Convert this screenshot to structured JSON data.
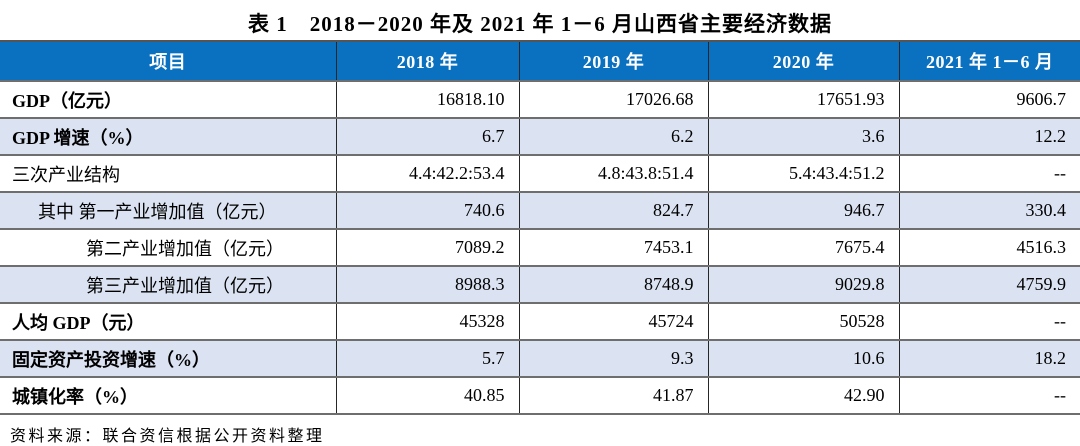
{
  "title": "表 1　2018－2020 年及 2021 年 1－6 月山西省主要经济数据",
  "table": {
    "columns": [
      "项目",
      "2018 年",
      "2019 年",
      "2020 年",
      "2021 年 1－6 月"
    ],
    "rows": [
      {
        "label": "GDP（亿元）",
        "bold": true,
        "indent": 0,
        "values": [
          "16818.10",
          "17026.68",
          "17651.93",
          "9606.7"
        ]
      },
      {
        "label": "GDP 增速（%）",
        "bold": true,
        "indent": 0,
        "values": [
          "6.7",
          "6.2",
          "3.6",
          "12.2"
        ]
      },
      {
        "label": "三次产业结构",
        "bold": false,
        "indent": 0,
        "values": [
          "4.4:42.2:53.4",
          "4.8:43.8:51.4",
          "5.4:43.4:51.2",
          "--"
        ]
      },
      {
        "label": "其中 第一产业增加值（亿元）",
        "bold": false,
        "indent": 1,
        "values": [
          "740.6",
          "824.7",
          "946.7",
          "330.4"
        ]
      },
      {
        "label": "第二产业增加值（亿元）",
        "bold": false,
        "indent": 2,
        "values": [
          "7089.2",
          "7453.1",
          "7675.4",
          "4516.3"
        ]
      },
      {
        "label": "第三产业增加值（亿元）",
        "bold": false,
        "indent": 2,
        "values": [
          "8988.3",
          "8748.9",
          "9029.8",
          "4759.9"
        ]
      },
      {
        "label": "人均 GDP（元）",
        "bold": true,
        "indent": 0,
        "values": [
          "45328",
          "45724",
          "50528",
          "--"
        ]
      },
      {
        "label": "固定资产投资增速（%）",
        "bold": true,
        "indent": 0,
        "values": [
          "5.7",
          "9.3",
          "10.6",
          "18.2"
        ]
      },
      {
        "label": "城镇化率（%）",
        "bold": true,
        "indent": 0,
        "values": [
          "40.85",
          "41.87",
          "42.90",
          "--"
        ]
      }
    ]
  },
  "footer": "资料来源：联合资信根据公开资料整理",
  "colors": {
    "header_bg": "#0a70c0",
    "header_text": "#ffffff",
    "stripe_bg": "#dbe3f2",
    "border_horizontal": "#6e6e6e",
    "border_vertical": "#262626"
  }
}
